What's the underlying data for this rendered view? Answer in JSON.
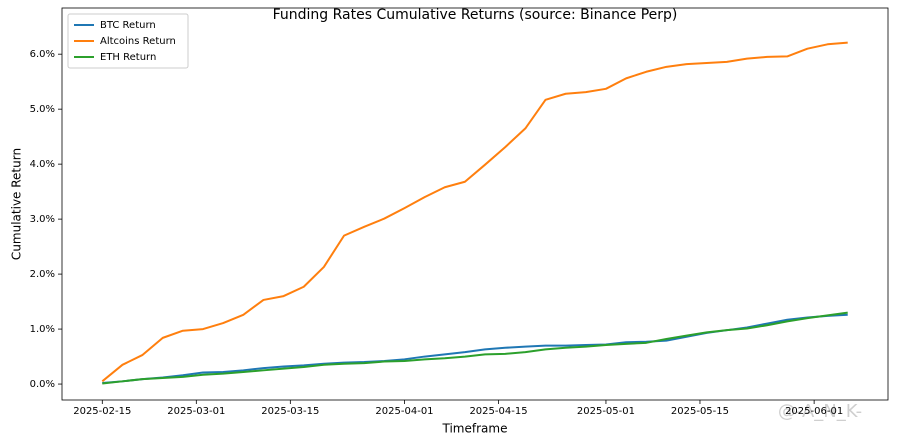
{
  "chart_data": {
    "type": "line",
    "title": "Funding Rates Cumulative Returns (source: Binance Perp)",
    "x_label": "Timeframe",
    "y_label": "Cumulative Return",
    "watermark": "@-A_N_K-",
    "legend": "upper left",
    "x": [
      "2025-02-15",
      "2025-02-18",
      "2025-02-21",
      "2025-02-24",
      "2025-02-27",
      "2025-03-02",
      "2025-03-05",
      "2025-03-08",
      "2025-03-11",
      "2025-03-14",
      "2025-03-17",
      "2025-03-20",
      "2025-03-23",
      "2025-03-26",
      "2025-03-29",
      "2025-04-01",
      "2025-04-04",
      "2025-04-07",
      "2025-04-10",
      "2025-04-13",
      "2025-04-16",
      "2025-04-19",
      "2025-04-22",
      "2025-04-25",
      "2025-04-28",
      "2025-05-01",
      "2025-05-04",
      "2025-05-07",
      "2025-05-10",
      "2025-05-13",
      "2025-05-16",
      "2025-05-19",
      "2025-05-22",
      "2025-05-25",
      "2025-05-28",
      "2025-05-31",
      "2025-06-03",
      "2025-06-06"
    ],
    "series": [
      {
        "name": "BTC Return",
        "color": "#1f77b4",
        "values": [
          0.02,
          0.05,
          0.09,
          0.12,
          0.16,
          0.21,
          0.22,
          0.25,
          0.29,
          0.32,
          0.34,
          0.37,
          0.39,
          0.4,
          0.42,
          0.45,
          0.5,
          0.54,
          0.58,
          0.63,
          0.66,
          0.68,
          0.7,
          0.7,
          0.71,
          0.72,
          0.76,
          0.77,
          0.79,
          0.86,
          0.93,
          0.98,
          1.03,
          1.1,
          1.17,
          1.21,
          1.24,
          1.26
        ]
      },
      {
        "name": "Altcoins Return",
        "color": "#ff7f0e",
        "values": [
          0.05,
          0.35,
          0.53,
          0.84,
          0.97,
          1.0,
          1.11,
          1.26,
          1.53,
          1.6,
          1.77,
          2.13,
          2.7,
          2.86,
          3.01,
          3.2,
          3.4,
          3.58,
          3.68,
          3.99,
          4.31,
          4.65,
          5.17,
          5.28,
          5.31,
          5.37,
          5.56,
          5.68,
          5.77,
          5.82,
          5.84,
          5.86,
          5.92,
          5.95,
          5.96,
          6.1,
          6.18,
          6.21
        ]
      },
      {
        "name": "ETH Return",
        "color": "#2ca02c",
        "values": [
          0.01,
          0.05,
          0.09,
          0.11,
          0.13,
          0.17,
          0.19,
          0.22,
          0.25,
          0.28,
          0.31,
          0.35,
          0.37,
          0.38,
          0.41,
          0.42,
          0.45,
          0.47,
          0.5,
          0.54,
          0.55,
          0.58,
          0.63,
          0.66,
          0.68,
          0.71,
          0.73,
          0.75,
          0.82,
          0.88,
          0.94,
          0.98,
          1.01,
          1.07,
          1.14,
          1.2,
          1.25,
          1.3
        ]
      }
    ],
    "xlim": [
      "2025-02-09",
      "2025-06-12"
    ],
    "xticks": [
      "2025-02-15",
      "2025-03-01",
      "2025-03-15",
      "2025-04-01",
      "2025-04-15",
      "2025-05-01",
      "2025-05-15",
      "2025-06-01"
    ],
    "ylim": [
      -0.29,
      6.84
    ],
    "yticks": [
      {
        "value": 0,
        "label": "0.0%"
      },
      {
        "value": 1,
        "label": "1.0%"
      },
      {
        "value": 2,
        "label": "2.0%"
      },
      {
        "value": 3,
        "label": "3.0%"
      },
      {
        "value": 4,
        "label": "4.0%"
      },
      {
        "value": 5,
        "label": "5.0%"
      },
      {
        "value": 6,
        "label": "6.0%"
      }
    ]
  }
}
